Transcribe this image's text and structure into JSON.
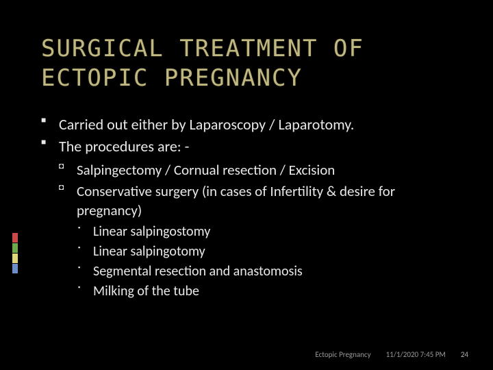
{
  "title": "SURGICAL TREATMENT OF ECTOPIC PREGNANCY",
  "colors": {
    "background": "#000000",
    "title_color": "#c0b880",
    "body_text": "#e8e8e8",
    "footer_text": "#9a9a9a",
    "accent_bars": [
      "#c94a4a",
      "#6fa84f",
      "#e0d67a",
      "#6b8fc9"
    ]
  },
  "typography": {
    "title_font": "Lucida Console",
    "title_size_pt": 26,
    "body_font": "Calibri",
    "body_size_pt": 17
  },
  "bullets_lvl1": [
    "Carried out either by Laparoscopy / Laparotomy.",
    "The procedures are: -"
  ],
  "bullets_lvl2": [
    "Salpingectomy / Cornual resection / Excision",
    "Conservative  surgery (in cases of Infertility & desire for pregnancy)"
  ],
  "bullets_lvl3": [
    "Linear salpingostomy",
    "Linear salpingotomy",
    "Segmental resection and  anastomosis",
    "Milking of the tube"
  ],
  "footer": {
    "subject": "Ectopic Pregnancy",
    "datetime": "11/1/2020 7:45 PM",
    "page": "24"
  }
}
